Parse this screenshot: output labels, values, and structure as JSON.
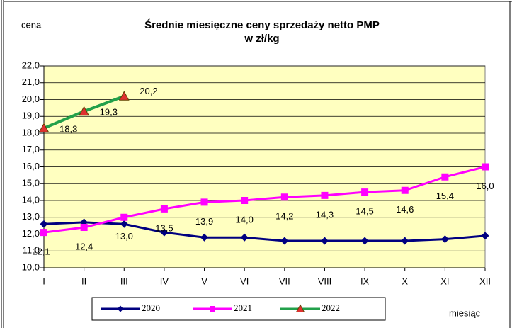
{
  "chart_data": {
    "type": "line",
    "title": "Średnie miesięczne ceny sprzedaży netto PMP",
    "subtitle": "w zł/kg",
    "y_label": "cena",
    "x_label": "miesiąc",
    "categories": [
      "I",
      "II",
      "III",
      "IV",
      "V",
      "VI",
      "VII",
      "VIII",
      "IX",
      "X",
      "XI",
      "XII"
    ],
    "series": [
      {
        "name": "2020",
        "color": "#000080",
        "marker": "diamond",
        "values": [
          12.6,
          12.7,
          12.6,
          12.1,
          11.8,
          11.8,
          11.6,
          11.6,
          11.6,
          11.6,
          11.7,
          11.9
        ]
      },
      {
        "name": "2021",
        "color": "#ff00ff",
        "marker": "square",
        "values": [
          12.1,
          12.4,
          13.0,
          13.5,
          13.9,
          14.0,
          14.2,
          14.3,
          14.5,
          14.6,
          15.4,
          16.0
        ],
        "value_labels": [
          "12,1",
          "12,4",
          "13,0",
          "13,5",
          "13,9",
          "14,0",
          "14,2",
          "14,3",
          "14,5",
          "14,6",
          "15,4",
          "16,0"
        ]
      },
      {
        "name": "2022",
        "color": "#22a04a",
        "marker": "triangle",
        "values": [
          18.3,
          19.3,
          20.2,
          null,
          null,
          null,
          null,
          null,
          null,
          null,
          null,
          null
        ],
        "value_labels": [
          "18,3",
          "19,3",
          "20,2",
          null,
          null,
          null,
          null,
          null,
          null,
          null,
          null,
          null
        ]
      }
    ],
    "ylim": [
      10,
      22
    ],
    "yticks": [
      {
        "value": 10,
        "label": "10,0"
      },
      {
        "value": 11,
        "label": "11,0"
      },
      {
        "value": 12,
        "label": "12,0"
      },
      {
        "value": 13,
        "label": "13,0"
      },
      {
        "value": 14,
        "label": "14,0"
      },
      {
        "value": 15,
        "label": "15,0"
      },
      {
        "value": 16,
        "label": "16,0"
      },
      {
        "value": 17,
        "label": "17,0"
      },
      {
        "value": 18,
        "label": "18,0"
      },
      {
        "value": 19,
        "label": "19,0"
      },
      {
        "value": 20,
        "label": "20,0"
      },
      {
        "value": 21,
        "label": "21,0"
      },
      {
        "value": 22,
        "label": "22,0"
      }
    ],
    "grid": true,
    "legend": "bottom"
  }
}
